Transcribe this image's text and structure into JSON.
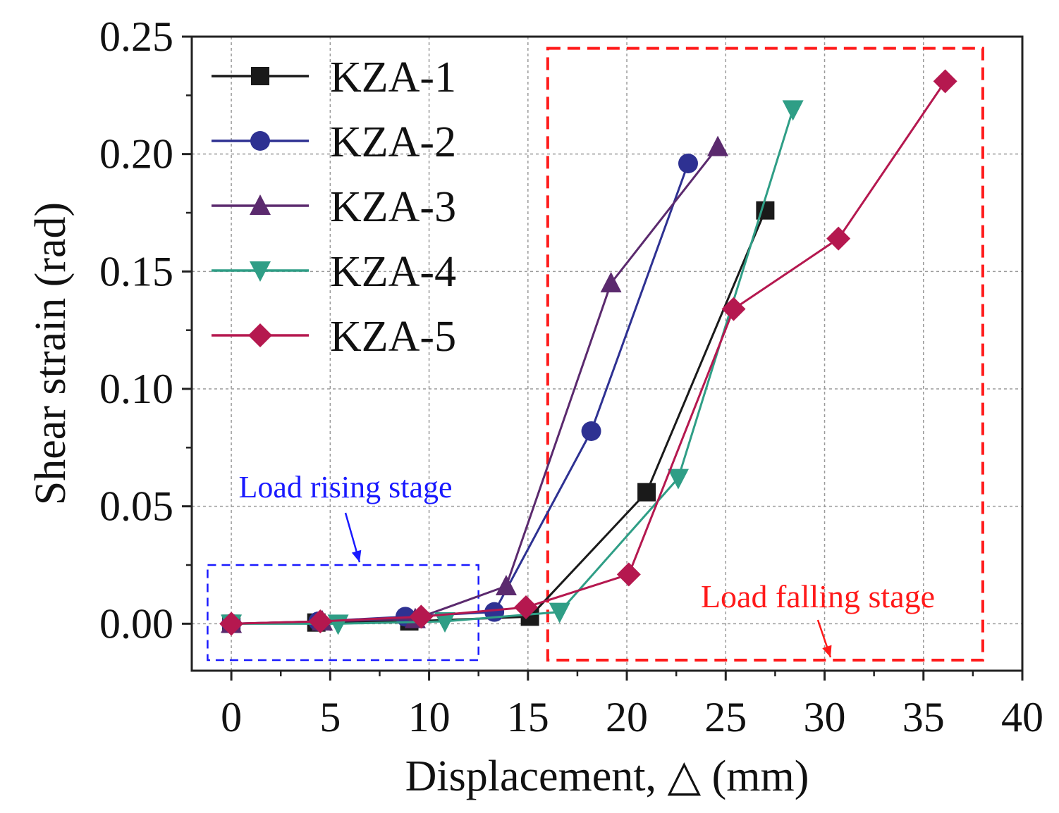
{
  "chart_data": {
    "type": "line",
    "title": "",
    "xlabel": "Displacement, △ (mm)",
    "ylabel": "Shear strain (rad)",
    "xlim": [
      -2,
      40
    ],
    "ylim": [
      -0.02,
      0.25
    ],
    "grid": true,
    "legend_position": "top-left",
    "x_ticks": [
      {
        "value": 0,
        "label": "0"
      },
      {
        "value": 5,
        "label": "5"
      },
      {
        "value": 10,
        "label": "10"
      },
      {
        "value": 15,
        "label": "15"
      },
      {
        "value": 20,
        "label": "20"
      },
      {
        "value": 25,
        "label": "25"
      },
      {
        "value": 30,
        "label": "30"
      },
      {
        "value": 35,
        "label": "35"
      },
      {
        "value": 40,
        "label": "40"
      }
    ],
    "y_ticks": [
      {
        "value": 0.0,
        "label": "0.00"
      },
      {
        "value": 0.05,
        "label": "0.05"
      },
      {
        "value": 0.1,
        "label": "0.10"
      },
      {
        "value": 0.15,
        "label": "0.15"
      },
      {
        "value": 0.2,
        "label": "0.20"
      },
      {
        "value": 0.25,
        "label": "0.25"
      }
    ],
    "series": [
      {
        "name": "KZA-1",
        "color": "#1a1a1a",
        "marker": "square",
        "x": [
          0,
          4.3,
          9.0,
          15.1,
          21.0,
          27.0
        ],
        "y": [
          0.0,
          0.0005,
          0.001,
          0.003,
          0.056,
          0.176
        ]
      },
      {
        "name": "KZA-2",
        "color": "#2e3192",
        "marker": "circle",
        "x": [
          0,
          4.4,
          8.8,
          13.3,
          18.2,
          23.1
        ],
        "y": [
          0.0,
          0.001,
          0.003,
          0.005,
          0.082,
          0.196
        ]
      },
      {
        "name": "KZA-3",
        "color": "#5b2a6e",
        "marker": "triangle-up",
        "x": [
          0,
          4.6,
          9.3,
          13.9,
          19.2,
          24.6
        ],
        "y": [
          0.0,
          0.001,
          0.002,
          0.016,
          0.145,
          0.203
        ]
      },
      {
        "name": "KZA-4",
        "color": "#2f9e86",
        "marker": "triangle-down",
        "x": [
          0,
          5.4,
          10.8,
          16.6,
          22.6,
          28.4
        ],
        "y": [
          0.0,
          0.0,
          0.001,
          0.005,
          0.062,
          0.219
        ]
      },
      {
        "name": "KZA-5",
        "color": "#b5184f",
        "marker": "diamond",
        "x": [
          0,
          4.5,
          9.6,
          14.9,
          20.1,
          25.4,
          30.7,
          36.1
        ],
        "y": [
          0.0,
          0.001,
          0.003,
          0.007,
          0.021,
          0.134,
          0.164,
          0.231
        ]
      }
    ],
    "annotations": [
      {
        "text": "Load rising stage",
        "color": "#1a1aff",
        "box": {
          "x0": -1.2,
          "x1": 12.5,
          "y0": -0.0155,
          "y1": 0.025
        }
      },
      {
        "text": "Load falling stage",
        "color": "#ff1a1a",
        "box": {
          "x0": 16.0,
          "x1": 38.0,
          "y0": -0.0155,
          "y1": 0.245
        }
      }
    ]
  }
}
